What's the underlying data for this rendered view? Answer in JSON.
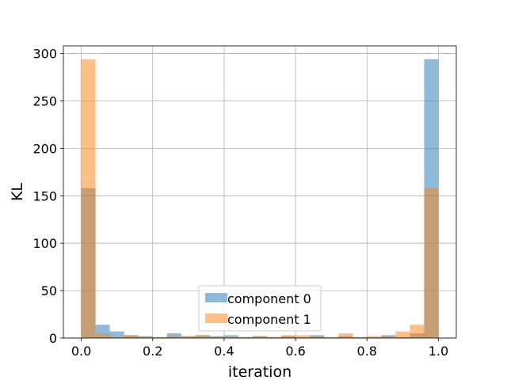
{
  "chart_data": {
    "type": "bar",
    "subtype": "overlapping-histogram",
    "title": "",
    "xlabel": "iteration",
    "ylabel": "KL",
    "xlim": [
      -0.05,
      1.05
    ],
    "ylim": [
      0,
      308
    ],
    "xticks": [
      0.0,
      0.2,
      0.4,
      0.6,
      0.8,
      1.0
    ],
    "xtick_labels": [
      "0.0",
      "0.2",
      "0.4",
      "0.6",
      "0.8",
      "1.0"
    ],
    "yticks": [
      0,
      50,
      100,
      150,
      200,
      250,
      300
    ],
    "ytick_labels": [
      "0",
      "50",
      "100",
      "150",
      "200",
      "250",
      "300"
    ],
    "grid": true,
    "legend_position": "lower center",
    "bin_edges": [
      0.0,
      0.04,
      0.08,
      0.12,
      0.16,
      0.2,
      0.24,
      0.28,
      0.32,
      0.36,
      0.4,
      0.44,
      0.48,
      0.52,
      0.56,
      0.6,
      0.64,
      0.68,
      0.72,
      0.76,
      0.8,
      0.84,
      0.88,
      0.92,
      0.96,
      1.0
    ],
    "series": [
      {
        "name": "component 0",
        "color": "#1f77b4",
        "alpha": 0.5,
        "values": [
          158,
          14,
          7,
          3,
          2,
          1,
          5,
          2,
          3,
          2,
          3,
          1,
          2,
          1,
          2,
          1,
          3,
          1,
          2,
          1,
          1,
          3,
          1,
          5,
          294
        ]
      },
      {
        "name": "component 1",
        "color": "#ff7f0e",
        "alpha": 0.5,
        "values": [
          294,
          5,
          1,
          3,
          1,
          1,
          2,
          2,
          3,
          1,
          1,
          1,
          2,
          1,
          3,
          3,
          2,
          1,
          5,
          1,
          2,
          2,
          7,
          14,
          158
        ]
      }
    ]
  }
}
